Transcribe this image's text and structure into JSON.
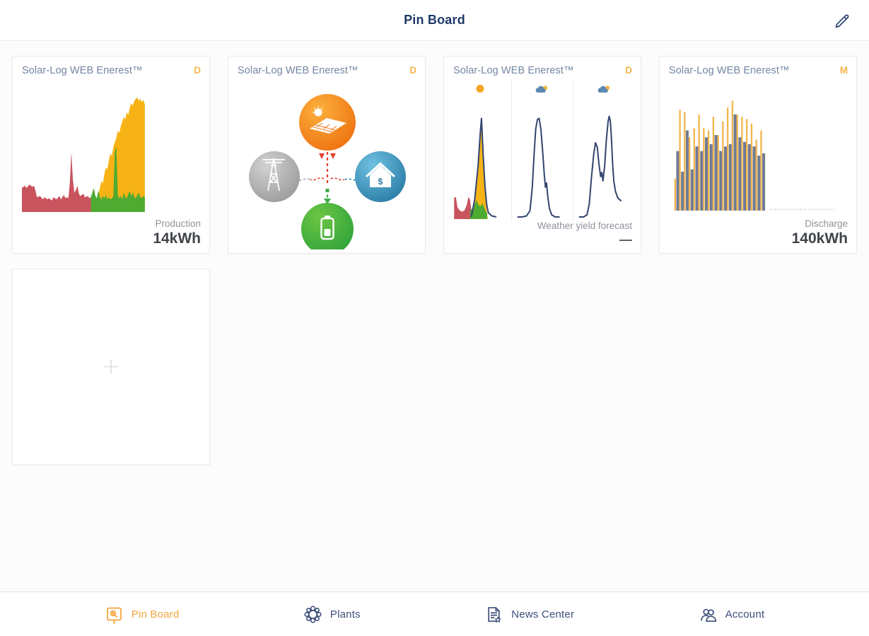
{
  "header": {
    "title": "Pin Board",
    "edit_icon": "pencil-icon"
  },
  "colors": {
    "accent_orange": "#f2a53f",
    "badge_orange": "#f5b54a",
    "navy_text": "#1f3a68",
    "chart_red": "#c9545e",
    "chart_green": "#4faa32",
    "chart_yellow": "#f7b215",
    "bar_yellow": "#f3b64d",
    "bar_gray": "#6f7b95",
    "forecast_line": "#32456f"
  },
  "cards": [
    {
      "title": "Solar-Log WEB Enerest™",
      "badge": "D",
      "footer": {
        "label": "Production",
        "value": "14kWh"
      },
      "chart": {
        "type": "area",
        "series": [
          {
            "name": "forecast-yield",
            "kind": "area",
            "color": "#f7b215",
            "profile": [
              [
                48,
                0
              ],
              [
                50,
                9
              ],
              [
                51,
                15
              ],
              [
                52,
                21
              ],
              [
                53,
                27
              ],
              [
                54,
                25
              ],
              [
                55,
                33
              ],
              [
                56,
                39
              ],
              [
                57,
                37
              ],
              [
                58,
                45
              ],
              [
                59,
                51
              ],
              [
                60,
                49
              ],
              [
                61,
                57
              ],
              [
                62,
                61
              ],
              [
                63,
                65
              ],
              [
                64,
                71
              ],
              [
                65,
                69
              ],
              [
                66,
                75
              ],
              [
                67,
                79
              ],
              [
                68,
                83
              ],
              [
                69,
                81
              ],
              [
                70,
                87
              ],
              [
                71,
                85
              ],
              [
                72,
                91
              ],
              [
                73,
                95
              ],
              [
                74,
                93
              ],
              [
                75,
                97
              ],
              [
                76,
                99
              ],
              [
                77,
                100
              ],
              [
                78,
                97
              ],
              [
                79,
                99
              ],
              [
                80,
                96
              ],
              [
                81,
                98
              ],
              [
                82,
                94
              ]
            ]
          },
          {
            "name": "consumption",
            "kind": "area",
            "color": "#c9545e",
            "profile": [
              [
                0,
                21
              ],
              [
                2,
                23
              ],
              [
                3,
                21
              ],
              [
                5,
                24
              ],
              [
                7,
                22
              ],
              [
                8,
                23
              ],
              [
                9,
                19
              ],
              [
                10,
                13
              ],
              [
                12,
                14
              ],
              [
                14,
                11
              ],
              [
                15,
                13
              ],
              [
                17,
                11
              ],
              [
                18,
                12
              ],
              [
                20,
                10
              ],
              [
                21,
                13
              ],
              [
                23,
                11
              ],
              [
                25,
                14
              ],
              [
                26,
                11
              ],
              [
                28,
                15
              ],
              [
                29,
                12
              ],
              [
                30,
                13
              ],
              [
                31,
                12
              ],
              [
                32,
                26
              ],
              [
                33,
                52
              ],
              [
                34,
                28
              ],
              [
                35,
                17
              ],
              [
                36,
                19
              ],
              [
                37,
                23
              ],
              [
                38,
                16
              ],
              [
                39,
                14
              ],
              [
                41,
                16
              ],
              [
                42,
                13
              ],
              [
                44,
                14
              ],
              [
                45,
                12
              ],
              [
                46,
                13
              ]
            ]
          },
          {
            "name": "self-consumption",
            "kind": "area",
            "color": "#4faa32",
            "profile": [
              [
                46,
                13
              ],
              [
                47,
                17
              ],
              [
                48,
                21
              ],
              [
                49,
                14
              ],
              [
                50,
                12
              ],
              [
                51,
                19
              ],
              [
                52,
                13
              ],
              [
                53,
                11
              ],
              [
                54,
                14
              ],
              [
                55,
                12
              ],
              [
                56,
                15
              ],
              [
                57,
                11
              ],
              [
                58,
                13
              ],
              [
                59,
                11
              ],
              [
                60,
                12
              ],
              [
                61,
                14
              ],
              [
                62,
                53
              ],
              [
                63,
                57
              ],
              [
                64,
                15
              ],
              [
                65,
                12
              ],
              [
                66,
                14
              ],
              [
                67,
                11
              ],
              [
                68,
                17
              ],
              [
                69,
                13
              ],
              [
                70,
                12
              ],
              [
                71,
                16
              ],
              [
                72,
                18
              ],
              [
                73,
                14
              ],
              [
                74,
                17
              ],
              [
                75,
                13
              ],
              [
                76,
                12
              ],
              [
                77,
                15
              ],
              [
                78,
                17
              ],
              [
                79,
                13
              ],
              [
                80,
                12
              ],
              [
                81,
                14
              ],
              [
                82,
                13
              ]
            ]
          }
        ]
      }
    },
    {
      "title": "Solar-Log WEB Enerest™",
      "badge": "D",
      "diagram": {
        "type": "energy-flow",
        "nodes": [
          "solar-panel",
          "grid-tower",
          "house",
          "battery"
        ],
        "node_colors": {
          "solar-panel": "#ef7211",
          "grid-tower": "#a8a8a8",
          "house": "#3a89b5",
          "battery": "#3fae49"
        }
      }
    },
    {
      "title": "Solar-Log WEB Enerest™",
      "badge": "D",
      "footer": {
        "label": "Weather yield forecast",
        "value": "—"
      },
      "chart": {
        "type": "forecast-panels",
        "panels": [
          {
            "weather_icon": "sun-icon",
            "series": [
              {
                "name": "yield",
                "kind": "area",
                "color": "#f7b215",
                "profile": [
                  [
                    36,
                    0
                  ],
                  [
                    40,
                    15
                  ],
                  [
                    44,
                    35
                  ],
                  [
                    48,
                    62
                  ],
                  [
                    50,
                    80
                  ],
                  [
                    52,
                    95
                  ],
                  [
                    54,
                    73
                  ],
                  [
                    56,
                    48
                  ],
                  [
                    58,
                    28
                  ],
                  [
                    60,
                    14
                  ],
                  [
                    62,
                    5
                  ],
                  [
                    63,
                    0
                  ]
                ]
              },
              {
                "name": "consumption",
                "kind": "area",
                "color": "#c9545e",
                "profile": [
                  [
                    4,
                    20
                  ],
                  [
                    7,
                    21
                  ],
                  [
                    10,
                    11
                  ],
                  [
                    14,
                    8
                  ],
                  [
                    18,
                    7
                  ],
                  [
                    22,
                    8
                  ],
                  [
                    26,
                    13
                  ],
                  [
                    29,
                    21
                  ],
                  [
                    32,
                    18
                  ],
                  [
                    34,
                    9
                  ]
                ]
              },
              {
                "name": "self-consumption",
                "kind": "area",
                "color": "#4faa32",
                "profile": [
                  [
                    32,
                    8
                  ],
                  [
                    36,
                    10
                  ],
                  [
                    40,
                    14
                  ],
                  [
                    44,
                    18
                  ],
                  [
                    46,
                    14
                  ],
                  [
                    50,
                    12
                  ],
                  [
                    54,
                    15
                  ],
                  [
                    58,
                    9
                  ],
                  [
                    62,
                    5
                  ]
                ]
              },
              {
                "name": "forecast-line",
                "kind": "line",
                "color": "#32456f",
                "profile": [
                  [
                    34,
                    2
                  ],
                  [
                    40,
                    18
                  ],
                  [
                    46,
                    50
                  ],
                  [
                    50,
                    82
                  ],
                  [
                    52,
                    95
                  ],
                  [
                    55,
                    60
                  ],
                  [
                    58,
                    32
                  ],
                  [
                    61,
                    14
                  ],
                  [
                    64,
                    6
                  ],
                  [
                    70,
                    3
                  ],
                  [
                    78,
                    2
                  ]
                ]
              }
            ]
          },
          {
            "weather_icon": "cloud-sun-icon",
            "series": [
              {
                "name": "forecast-line",
                "kind": "line",
                "color": "#32456f",
                "profile": [
                  [
                    6,
                    2
                  ],
                  [
                    14,
                    2
                  ],
                  [
                    22,
                    3
                  ],
                  [
                    28,
                    8
                  ],
                  [
                    32,
                    30
                  ],
                  [
                    35,
                    60
                  ],
                  [
                    38,
                    85
                  ],
                  [
                    41,
                    94
                  ],
                  [
                    44,
                    95
                  ],
                  [
                    47,
                    85
                  ],
                  [
                    50,
                    65
                  ],
                  [
                    53,
                    42
                  ],
                  [
                    55,
                    30
                  ],
                  [
                    57,
                    34
                  ],
                  [
                    59,
                    22
                  ],
                  [
                    62,
                    10
                  ],
                  [
                    66,
                    4
                  ],
                  [
                    72,
                    2
                  ],
                  [
                    80,
                    2
                  ]
                ]
              }
            ]
          },
          {
            "weather_icon": "cloud-sun-icon",
            "series": [
              {
                "name": "forecast-line",
                "kind": "line",
                "color": "#32456f",
                "profile": [
                  [
                    6,
                    2
                  ],
                  [
                    14,
                    2
                  ],
                  [
                    20,
                    4
                  ],
                  [
                    24,
                    14
                  ],
                  [
                    28,
                    40
                  ],
                  [
                    32,
                    62
                  ],
                  [
                    35,
                    72
                  ],
                  [
                    38,
                    68
                  ],
                  [
                    41,
                    52
                  ],
                  [
                    44,
                    40
                  ],
                  [
                    46,
                    44
                  ],
                  [
                    48,
                    36
                  ],
                  [
                    51,
                    50
                  ],
                  [
                    54,
                    75
                  ],
                  [
                    57,
                    92
                  ],
                  [
                    59,
                    97
                  ],
                  [
                    61,
                    92
                  ],
                  [
                    63,
                    75
                  ],
                  [
                    65,
                    52
                  ],
                  [
                    67,
                    36
                  ],
                  [
                    70,
                    26
                  ],
                  [
                    74,
                    20
                  ],
                  [
                    80,
                    17
                  ]
                ]
              }
            ]
          }
        ]
      }
    },
    {
      "title": "Solar-Log WEB Enerest™",
      "badge": "M",
      "footer": {
        "label": "Discharge",
        "value": "140kWh"
      },
      "chart": {
        "type": "bars",
        "series": [
          {
            "name": "charge",
            "color": "#f3b64d",
            "values": [
              28,
              88,
              86,
              64,
              72,
              84,
              72,
              70,
              82,
              66,
              78,
              90,
              96,
              84,
              82,
              80,
              76,
              62,
              70
            ]
          },
          {
            "name": "discharge",
            "color": "#6f7b95",
            "values": [
              52,
              34,
              70,
              36,
              56,
              52,
              64,
              58,
              66,
              52,
              56,
              58,
              84,
              64,
              60,
              58,
              56,
              48,
              50
            ]
          }
        ],
        "dotted_tail": true
      }
    }
  ],
  "add_card": {
    "icon": "plus-icon"
  },
  "nav": {
    "items": [
      {
        "label": "Pin Board",
        "icon": "pin-board-icon",
        "active": true
      },
      {
        "label": "Plants",
        "icon": "plants-icon",
        "active": false
      },
      {
        "label": "News Center",
        "icon": "news-center-icon",
        "active": false
      },
      {
        "label": "Account",
        "icon": "account-icon",
        "active": false
      }
    ]
  }
}
